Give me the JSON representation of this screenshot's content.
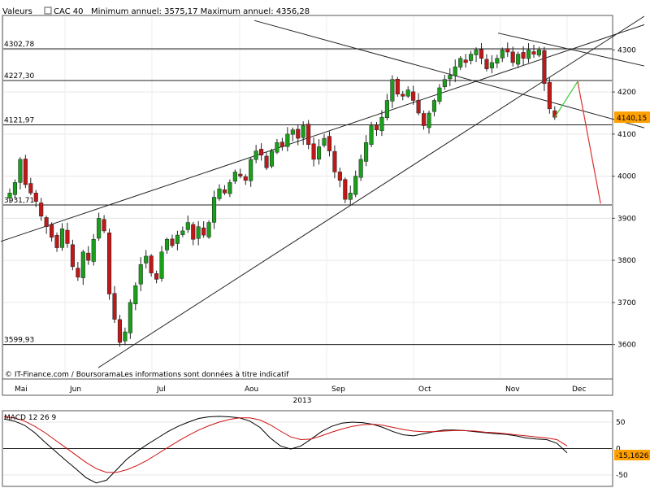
{
  "header": {
    "prefix": "Valeurs",
    "instrument": "CAC 40",
    "range_text": "Minimum annuel: 3575,17 Maximum annuel: 4356,28"
  },
  "footer": {
    "credit": "© IT-Finance.com / BoursoramaLes informations sont données à titre indicatif"
  },
  "colors": {
    "up": "#1b9e1b",
    "down": "#c01818",
    "price_tag": "#ffa000",
    "macd": "#000000",
    "signal": "#cc1111",
    "forecast_up": "#33cc33",
    "forecast_down": "#e03030"
  },
  "chart_data": [
    {
      "type": "candlestick",
      "title": "CAC 40",
      "year_label": "2013",
      "months": [
        "Mai",
        "Jun",
        "Jul",
        "Aou",
        "Sep",
        "Oct",
        "Nov",
        "Dec"
      ],
      "ylim": [
        3520,
        4380
      ],
      "yticks": [
        3600,
        3700,
        3800,
        3900,
        4000,
        4100,
        4200,
        4300
      ],
      "ytick_labels": [
        "3600",
        "3700",
        "3800",
        "3900",
        "4000",
        "4100",
        "4200",
        "4300"
      ],
      "last_price": 4140.15,
      "last_price_label": "4140,15",
      "levels": [
        {
          "value": 4302.78,
          "label": "4302,78"
        },
        {
          "value": 4227.3,
          "label": "4227,30"
        },
        {
          "value": 4121.97,
          "label": "4121,97"
        },
        {
          "value": 3931.71,
          "label": "3931,71"
        },
        {
          "value": 3599.93,
          "label": "3599,93"
        }
      ],
      "closes": [
        3960,
        3985,
        4040,
        3980,
        3960,
        3940,
        3905,
        3880,
        3855,
        3830,
        3875,
        3840,
        3785,
        3760,
        3820,
        3800,
        3850,
        3900,
        3870,
        3720,
        3660,
        3605,
        3630,
        3700,
        3740,
        3790,
        3810,
        3770,
        3755,
        3820,
        3850,
        3835,
        3860,
        3870,
        3890,
        3850,
        3880,
        3860,
        3890,
        3950,
        3970,
        3960,
        3985,
        4010,
        4000,
        3990,
        4040,
        4060,
        4050,
        4020,
        4060,
        4080,
        4070,
        4100,
        4110,
        4090,
        4120,
        4075,
        4040,
        4070,
        4090,
        4060,
        4010,
        3990,
        3945,
        3960,
        4000,
        4040,
        4080,
        4120,
        4110,
        4140,
        4180,
        4230,
        4195,
        4190,
        4205,
        4180,
        4150,
        4120,
        4150,
        4180,
        4210,
        4230,
        4240,
        4260,
        4280,
        4270,
        4290,
        4300,
        4280,
        4255,
        4270,
        4280,
        4300,
        4295,
        4270,
        4290,
        4280,
        4300,
        4290,
        4300,
        4220,
        4160,
        4140
      ],
      "forecast_path": [
        {
          "step": 0,
          "value": 4140
        },
        {
          "step": 6,
          "value": 4225
        },
        {
          "step": 12,
          "value": 3935
        }
      ],
      "trendlines": [
        {
          "from": {
            "step": 0,
            "value": 3845
          },
          "to": {
            "step": 132,
            "value": 4360
          }
        },
        {
          "from": {
            "step": 20,
            "value": 3545
          },
          "to": {
            "step": 132,
            "value": 4380
          }
        },
        {
          "from": {
            "step": 52,
            "value": 4370
          },
          "to": {
            "step": 132,
            "value": 4115
          }
        },
        {
          "from": {
            "step": 102,
            "value": 4340
          },
          "to": {
            "step": 132,
            "value": 4262
          }
        }
      ]
    },
    {
      "type": "line",
      "title": "MACD 12 26 9",
      "ylim": [
        -70,
        70
      ],
      "yticks": [
        50,
        0,
        -50
      ],
      "ytick_labels": [
        "50",
        "0",
        "-50"
      ],
      "last_value_label": "-15,1626",
      "series": [
        {
          "name": "MACD",
          "values": [
            56,
            52,
            44,
            30,
            12,
            -5,
            -22,
            -38,
            -55,
            -65,
            -60,
            -40,
            -20,
            -5,
            8,
            20,
            32,
            42,
            50,
            57,
            60,
            61,
            60,
            58,
            52,
            40,
            20,
            5,
            -1,
            5,
            18,
            32,
            42,
            48,
            50,
            49,
            46,
            40,
            32,
            26,
            24,
            28,
            32,
            35,
            35,
            34,
            32,
            30,
            28,
            27,
            24,
            20,
            18,
            17,
            10,
            -8
          ]
        },
        {
          "name": "Signal",
          "values": [
            60,
            58,
            52,
            42,
            30,
            16,
            2,
            -12,
            -26,
            -38,
            -45,
            -45,
            -40,
            -32,
            -22,
            -10,
            2,
            14,
            25,
            35,
            43,
            50,
            55,
            58,
            58,
            54,
            45,
            33,
            22,
            17,
            18,
            24,
            31,
            37,
            42,
            45,
            46,
            44,
            40,
            36,
            33,
            32,
            32,
            33,
            34,
            34,
            33,
            31,
            30,
            28,
            26,
            24,
            22,
            20,
            17,
            5
          ]
        }
      ]
    }
  ]
}
